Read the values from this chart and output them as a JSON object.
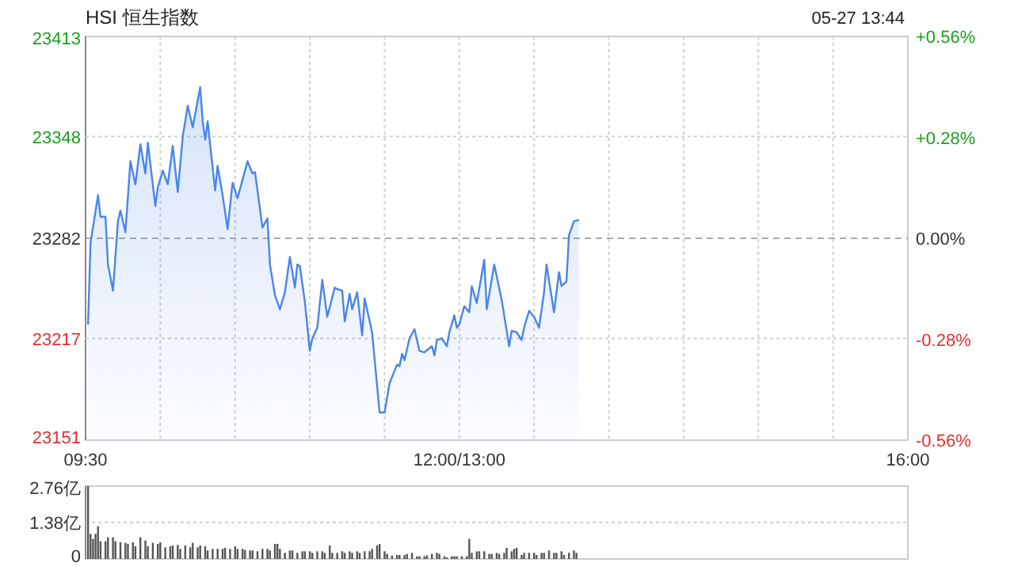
{
  "chart_data": [
    {
      "type": "area",
      "title": "HSI 恒生指数",
      "subtitle": "05-27 13:44",
      "categories": [
        "09:30",
        null,
        null,
        null,
        null,
        null,
        null,
        null,
        null,
        null,
        null,
        null,
        null,
        null,
        null,
        null,
        null,
        null,
        null,
        null,
        null,
        null,
        null,
        null,
        null,
        null,
        null,
        null,
        null,
        null,
        null,
        null,
        null,
        null,
        null,
        null,
        null,
        null,
        null,
        null,
        null,
        null,
        null,
        null,
        null,
        null,
        null,
        null,
        null,
        null,
        null,
        null,
        null,
        null,
        null,
        null,
        null,
        null,
        null,
        null,
        null,
        null,
        null,
        null,
        null,
        null,
        null,
        null,
        null,
        null,
        null,
        null,
        null,
        null,
        null,
        null,
        null,
        null,
        null,
        null,
        null,
        null,
        null,
        null,
        null,
        null,
        null,
        null,
        null,
        null,
        null,
        null,
        null,
        null,
        null,
        null,
        null,
        null,
        null,
        null,
        null,
        null,
        null,
        null,
        null,
        null,
        null,
        null,
        null,
        null,
        null,
        null,
        null,
        null,
        null,
        null,
        null,
        null,
        null,
        null,
        null,
        null,
        null,
        null,
        null,
        null,
        null,
        null,
        null,
        null,
        null,
        null,
        null,
        null,
        null,
        null,
        null,
        null,
        null,
        null,
        null,
        null,
        null,
        null,
        null,
        null,
        null,
        null,
        null,
        null,
        "12:00/13:00",
        null,
        null,
        null,
        null,
        null,
        null,
        null,
        null,
        null,
        null,
        null,
        null,
        null,
        null,
        null,
        null,
        null,
        null,
        null,
        null,
        null,
        null,
        null,
        null,
        null,
        null,
        null,
        null,
        null,
        null,
        null,
        null,
        null,
        null,
        null,
        null,
        null,
        null,
        null,
        null,
        null,
        null,
        null,
        null,
        null,
        null,
        null,
        null,
        null,
        null,
        null,
        null,
        null,
        null,
        null,
        null,
        null,
        null,
        null,
        null,
        null,
        null,
        null,
        null,
        null,
        null,
        null,
        null,
        null,
        null,
        null,
        null,
        null,
        null,
        null,
        null,
        null,
        null,
        null,
        null,
        null,
        null,
        null,
        null,
        null,
        null,
        null,
        null,
        null,
        null,
        null,
        null,
        null,
        null,
        null,
        null,
        null,
        null,
        null,
        null,
        null,
        null,
        null,
        null,
        null,
        null,
        null,
        null,
        null,
        null,
        null,
        null,
        null,
        null,
        null,
        null,
        null,
        null,
        null,
        null,
        null,
        null,
        null,
        null,
        null,
        null,
        null,
        null,
        null,
        null,
        null,
        null,
        null,
        null,
        null,
        null,
        null,
        null,
        null,
        null,
        null,
        null,
        null,
        null,
        null,
        null,
        null,
        null,
        null,
        null,
        null,
        null,
        null,
        null,
        null,
        null,
        null,
        null,
        null,
        null,
        null,
        null,
        null,
        null,
        null,
        null,
        null,
        null,
        null,
        null,
        null,
        null,
        null,
        null,
        null,
        null,
        null,
        null,
        null,
        "16:00"
      ],
      "ylim": [
        23151,
        23413
      ],
      "yticks": [
        23151,
        23217,
        23282,
        23348,
        23413
      ],
      "y2lim": [
        -0.56,
        0.56
      ],
      "y2ticks": [
        {
          "value": -0.56,
          "label": "-0.56%"
        },
        {
          "value": -0.28,
          "label": "-0.28%"
        },
        {
          "value": 0,
          "label": "0.00%"
        },
        {
          "value": 0.28,
          "label": "+0.28%"
        },
        {
          "value": 0.56,
          "label": "+0.56%"
        }
      ],
      "grid": true,
      "ref_lines": [
        {
          "axis": "y",
          "value": 23282
        }
      ],
      "series": [
        {
          "color": "#4a86e8",
          "values": [
            null,
            23226,
            23279,
            null,
            null,
            23310,
            23296,
            null,
            23296,
            23265,
            null,
            23248,
            null,
            23293,
            23300,
            null,
            23286,
            null,
            23332,
            null,
            23317,
            null,
            23343,
            null,
            23324,
            23344,
            null,
            null,
            23303,
            23315,
            null,
            23326,
            null,
            23317,
            null,
            23342,
            null,
            23312,
            null,
            23348,
            null,
            23368,
            null,
            23354,
            null,
            null,
            23380,
            23358,
            23346,
            23358,
            null,
            null,
            23313,
            23329,
            null,
            23310,
            null,
            23288,
            null,
            23318,
            null,
            23308,
            null,
            null,
            null,
            23332,
            null,
            23324,
            23325,
            null,
            null,
            23289,
            null,
            23295,
            23265,
            null,
            23245,
            null,
            23236,
            null,
            23247,
            null,
            23270,
            null,
            23250,
            23265,
            23264,
            null,
            23241,
            null,
            23209,
            23217,
            null,
            23224,
            null,
            23255,
            null,
            23231,
            null,
            null,
            23250,
            23249,
            null,
            23248,
            23228,
            null,
            23246,
            23236,
            null,
            23247,
            null,
            23219,
            23243,
            null,
            null,
            23221,
            null,
            null,
            23169,
            null,
            23169,
            null,
            23188,
            null,
            null,
            23200,
            23199,
            23207,
            23203,
            null,
            23217,
            null,
            23223,
            null,
            23209,
            null,
            23208,
            null,
            null,
            23212,
            23206,
            23216,
            null,
            23217,
            null,
            23212,
            23221,
            null,
            23232,
            23224,
            23226,
            null,
            23238,
            null,
            23234,
            23251,
            null,
            23240,
            null,
            null,
            23268,
            23236,
            null,
            null,
            23265,
            null,
            null,
            23242,
            null,
            null,
            23212,
            23222,
            null,
            23221,
            null,
            23216,
            23224,
            null,
            23235,
            null,
            23231,
            null,
            23224,
            null,
            23247,
            23265,
            null,
            null,
            23234,
            null,
            23260,
            23251,
            null,
            23254,
            23284,
            null,
            23293,
            null,
            23294,
            null,
            null,
            null,
            null,
            null,
            null,
            null,
            null,
            null,
            null,
            null,
            null,
            null,
            null,
            null,
            null,
            null,
            null,
            null,
            null,
            null,
            null,
            null,
            null,
            null,
            null,
            null,
            null,
            null,
            null,
            null,
            null,
            null,
            null,
            null,
            null,
            null,
            null,
            null,
            null,
            null,
            null,
            null,
            null,
            null,
            null,
            null,
            null,
            null,
            null,
            null,
            null,
            null,
            null,
            null,
            null,
            null,
            null,
            null,
            null,
            null,
            null,
            null,
            null,
            null,
            null,
            null,
            null,
            null,
            null,
            null,
            null,
            null,
            null,
            null,
            null,
            null,
            null,
            null,
            null,
            null,
            null,
            null,
            null,
            null,
            null,
            null,
            null,
            null,
            null,
            null,
            null,
            null,
            null,
            null,
            null,
            null,
            null,
            null,
            null,
            null,
            null,
            null,
            null,
            null,
            null,
            null,
            null,
            null,
            null,
            null,
            null,
            null,
            null,
            null,
            null,
            null,
            null,
            null,
            null,
            null,
            null,
            null,
            null,
            null,
            null,
            null,
            null,
            null,
            null,
            null,
            null
          ]
        }
      ]
    },
    {
      "type": "bar",
      "ylim": [
        0,
        2.76
      ],
      "yticks": [
        {
          "value": 0,
          "label": "0"
        },
        {
          "value": 1.38,
          "label": "1.38亿"
        },
        {
          "value": 2.76,
          "label": "2.76亿"
        }
      ],
      "tick_labels": "y",
      "grid": "y",
      "series": [
        {
          "color": "#555555",
          "values": [
            null,
            2.76,
            0.95,
            0.76,
            0.95,
            1.24,
            0.67,
            null,
            0.67,
            0.82,
            null,
            0.82,
            0.67,
            null,
            0.63,
            null,
            0.61,
            0.57,
            null,
            0.63,
            0.48,
            null,
            0.82,
            null,
            0.7,
            0.48,
            null,
            0.61,
            null,
            0.57,
            0.63,
            null,
            0.44,
            null,
            0.48,
            0.51,
            null,
            0.53,
            0.38,
            null,
            0.51,
            null,
            0.44,
            0.61,
            null,
            0.44,
            0.51,
            null,
            0.48,
            0.32,
            null,
            0.38,
            null,
            0.38,
            null,
            0.38,
            0.42,
            null,
            0.38,
            null,
            0.48,
            0.38,
            null,
            0.38,
            0.34,
            null,
            0.32,
            0.32,
            null,
            0.29,
            null,
            0.38,
            null,
            0.38,
            0.32,
            null,
            0.57,
            0.57,
            0.38,
            null,
            0.23,
            null,
            0.32,
            0.32,
            null,
            0.23,
            null,
            0.29,
            0.29,
            null,
            0.29,
            0.23,
            null,
            0.29,
            null,
            0.29,
            0.23,
            null,
            0.51,
            0.23,
            null,
            0.23,
            null,
            0.29,
            0.23,
            null,
            0.29,
            0.23,
            null,
            0.29,
            0.23,
            null,
            0.29,
            null,
            0.29,
            0.38,
            null,
            0.51,
            0.57,
            null,
            0.29,
            0.19,
            null,
            0.13,
            null,
            0.15,
            0.15,
            null,
            0.15,
            0.19,
            null,
            0.23,
            null,
            0.1,
            0.1,
            null,
            0.1,
            0.13,
            null,
            0.19,
            null,
            0.23,
            0.19,
            null,
            0.1,
            0.06,
            null,
            0.1,
            0.1,
            0.1,
            null,
            0.1,
            null,
            0.1,
            0.76,
            0.23,
            null,
            0.29,
            0.29,
            null,
            0.29,
            null,
            0.19,
            0.19,
            null,
            0.23,
            0.19,
            null,
            0.23,
            0.42,
            null,
            0.29,
            0.38,
            0.42,
            null,
            0.15,
            0.23,
            null,
            0.23,
            null,
            0.23,
            0.15,
            null,
            0.23,
            0.23,
            null,
            0.32,
            null,
            0.23,
            0.23,
            null,
            0.29,
            0.15,
            null,
            0.23,
            null,
            0.32,
            0.23,
            null,
            null,
            null,
            null,
            null,
            null,
            null,
            null,
            null,
            null,
            null,
            null,
            null,
            null,
            null,
            null,
            null,
            null,
            null,
            null,
            null,
            null,
            null,
            null,
            null,
            null,
            null,
            null,
            null,
            null,
            null,
            null,
            null,
            null,
            null,
            null,
            null,
            null,
            null,
            null,
            null,
            null,
            null,
            null,
            null,
            null,
            null,
            null,
            null,
            null,
            null,
            null,
            null,
            null,
            null,
            null,
            null,
            null,
            null,
            null,
            null,
            null,
            null,
            null,
            null,
            null,
            null,
            null,
            null,
            null,
            null,
            null,
            null,
            null,
            null,
            null,
            null,
            null,
            null,
            null,
            null,
            null,
            null,
            null,
            null,
            null,
            null,
            null,
            null,
            null,
            null,
            null,
            null,
            null,
            null,
            null,
            null,
            null,
            null,
            null,
            null,
            null,
            null,
            null,
            null,
            null,
            null,
            null,
            null,
            null,
            null,
            null,
            null,
            null,
            null,
            null,
            null,
            null,
            null,
            null,
            null,
            null,
            null,
            null,
            null,
            null,
            null,
            null,
            null,
            null,
            null,
            null,
            null
          ]
        }
      ]
    }
  ]
}
